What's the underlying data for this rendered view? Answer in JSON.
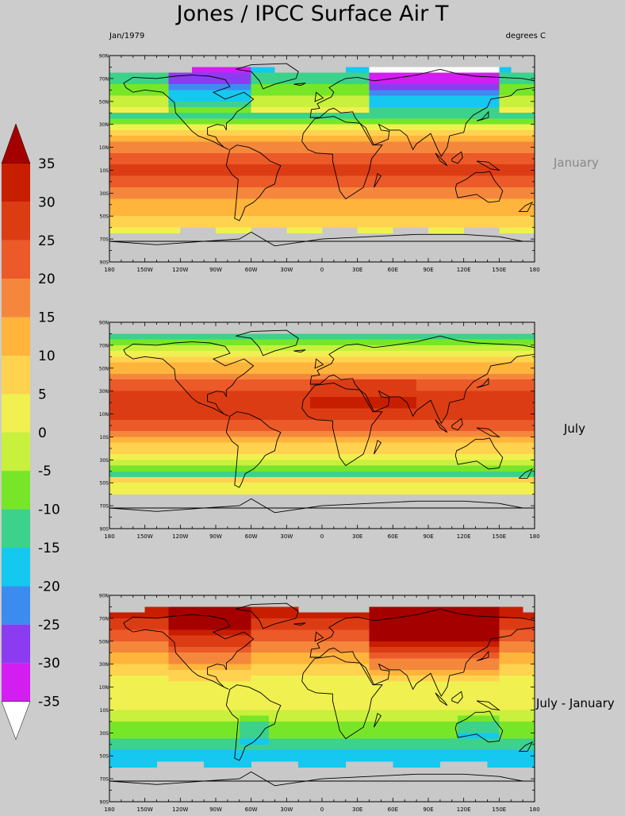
{
  "header": {
    "title": "Jones / IPCC Surface Air T",
    "date": "Jan/1979",
    "units": "degrees C"
  },
  "panels": [
    {
      "id": "january",
      "label": "January",
      "label_color": "#888888"
    },
    {
      "id": "july",
      "label": "July",
      "label_color": "#000000"
    },
    {
      "id": "diff",
      "label": "July - January",
      "label_color": "#000000"
    }
  ],
  "axes": {
    "lon_ticks": [
      "180",
      "150W",
      "120W",
      "90W",
      "60W",
      "30W",
      "0",
      "30E",
      "60E",
      "90E",
      "120E",
      "150E",
      "180"
    ],
    "lat_ticks": [
      "90N",
      "70N",
      "50N",
      "30N",
      "10N",
      "10S",
      "30S",
      "50S",
      "70S",
      "90S"
    ]
  },
  "colorbar": {
    "labels": [
      "35",
      "30",
      "25",
      "20",
      "15",
      "10",
      "5",
      "0",
      "-5",
      "-10",
      "-15",
      "-20",
      "-25",
      "-30",
      "-35"
    ],
    "colors": [
      "#a50000",
      "#c81e00",
      "#dc3c14",
      "#eb5a28",
      "#f5873c",
      "#ffb43c",
      "#ffd250",
      "#f0f050",
      "#c8f03c",
      "#78e628",
      "#3cd28c",
      "#14c8f0",
      "#3c8cf0",
      "#8c3cf0",
      "#d21ef0",
      "#ffffff"
    ]
  }
}
